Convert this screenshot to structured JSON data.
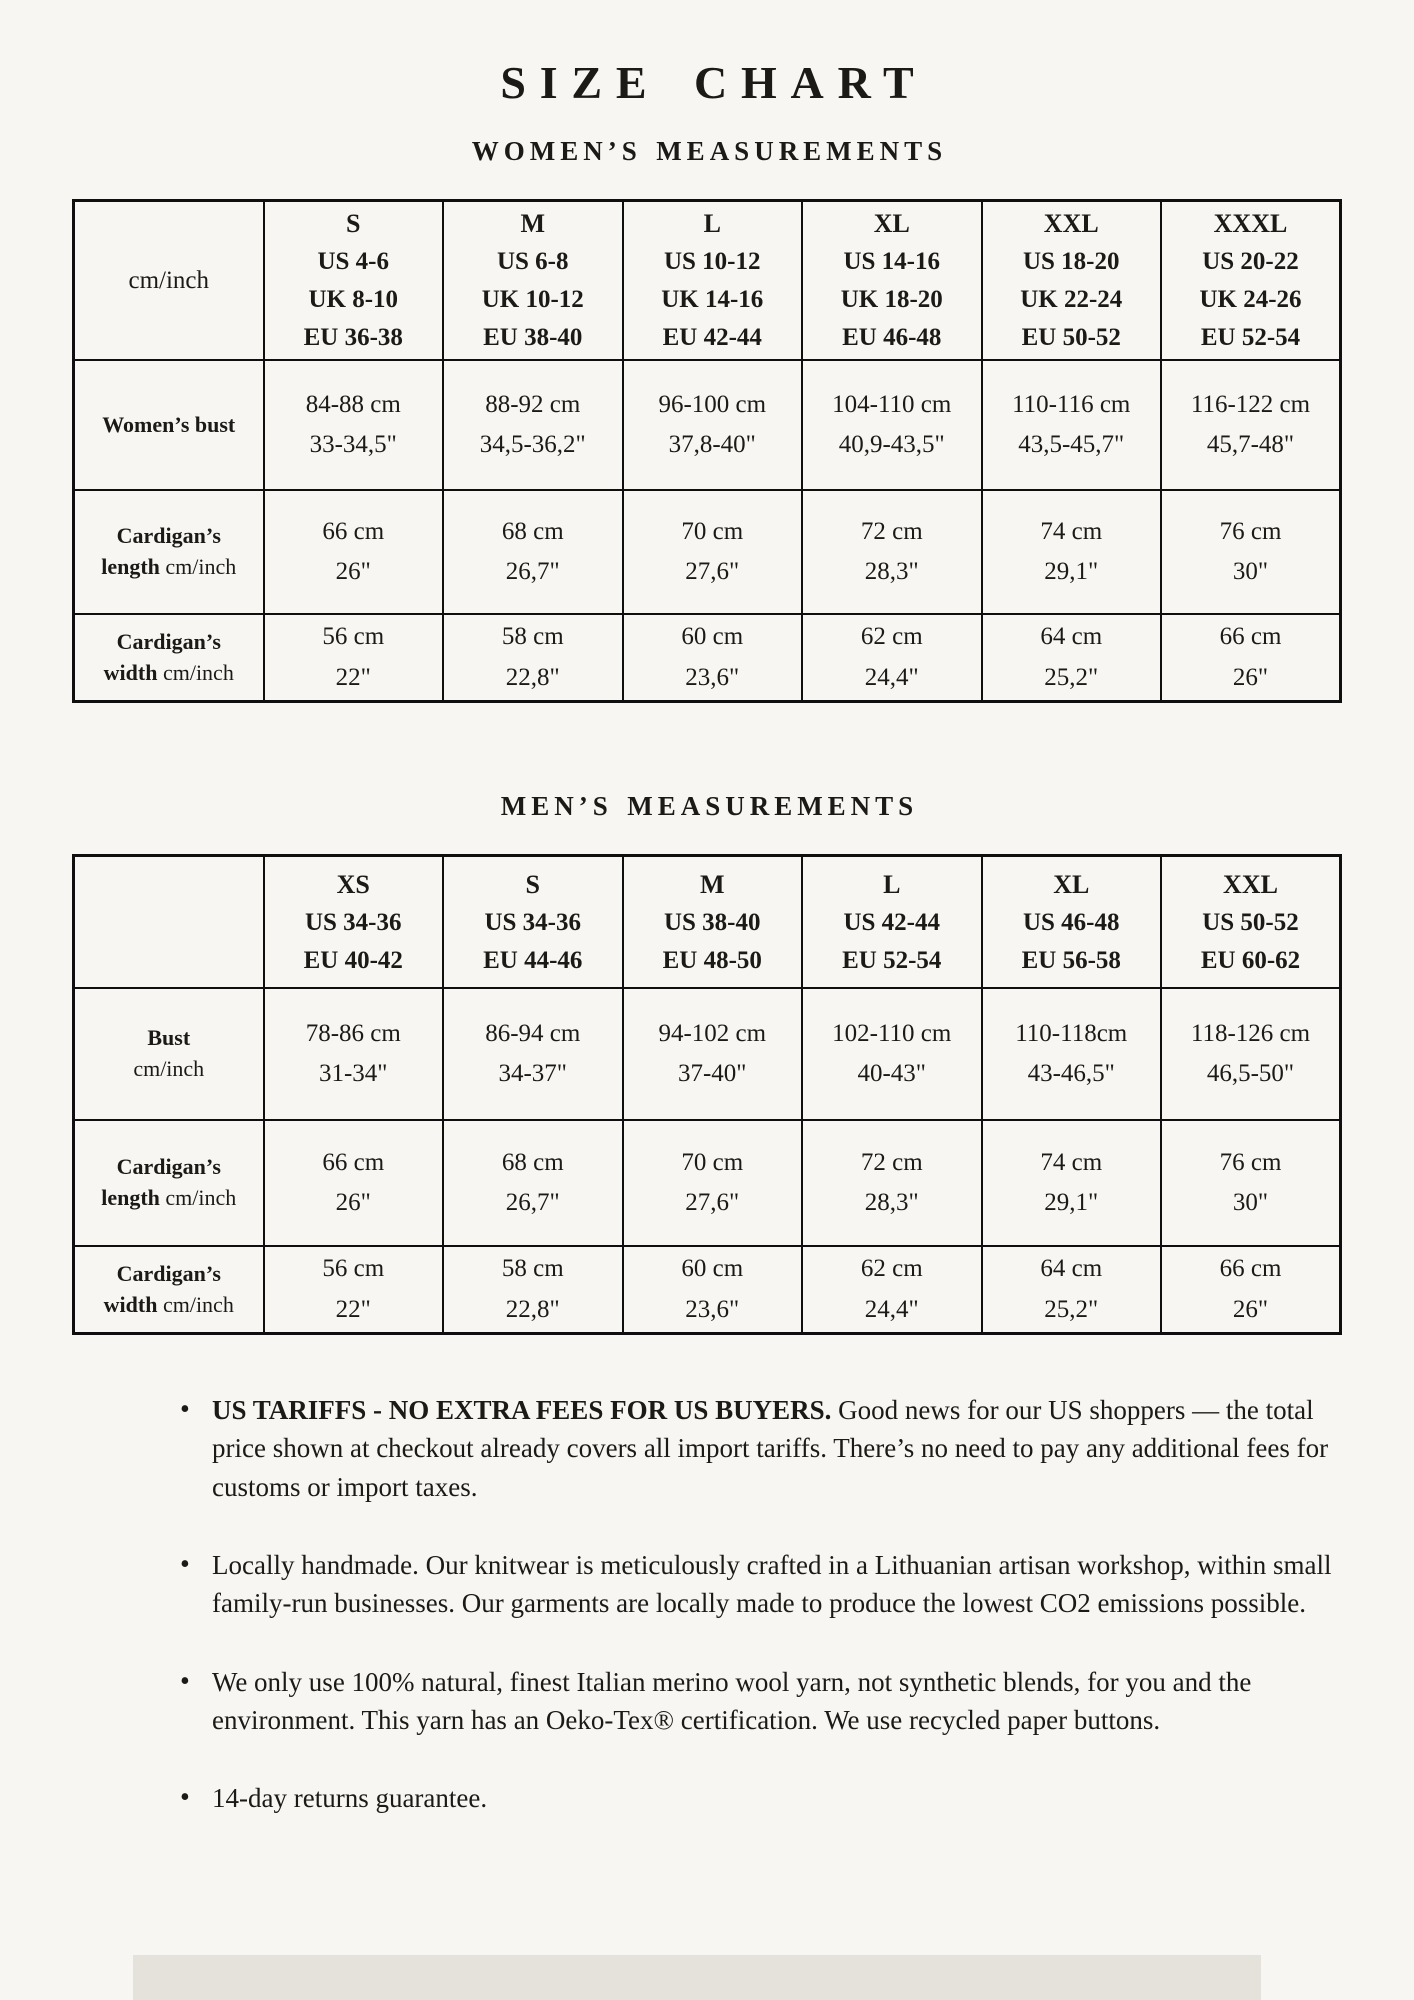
{
  "page_title": "SIZE CHART",
  "colors": {
    "background": "#f8f6f2",
    "text": "#1b1a17",
    "table_border": "#0f0f0f",
    "footer_block": "#e5e2dc"
  },
  "women": {
    "heading": "WOMEN’S MEASUREMENTS",
    "corner": "cm/inch",
    "columns": [
      {
        "size": "S",
        "subs": [
          "US 4-6",
          "UK 8-10",
          "EU 36-38"
        ]
      },
      {
        "size": "M",
        "subs": [
          "US 6-8",
          "UK 10-12",
          "EU 38-40"
        ]
      },
      {
        "size": "L",
        "subs": [
          "US 10-12",
          "UK 14-16",
          "EU 42-44"
        ]
      },
      {
        "size": "XL",
        "subs": [
          "US 14-16",
          "UK 18-20",
          "EU 46-48"
        ]
      },
      {
        "size": "XXL",
        "subs": [
          "US 18-20",
          "UK 22-24",
          "EU 50-52"
        ]
      },
      {
        "size": "XXXL",
        "subs": [
          "US 20-22",
          "UK 24-26",
          "EU 52-54"
        ]
      }
    ],
    "rows": [
      {
        "label_lines": [
          [
            {
              "bold": "Women’s bust"
            }
          ]
        ],
        "cells": [
          [
            "84-88 cm",
            "33-34,5\""
          ],
          [
            "88-92 cm",
            "34,5-36,2\""
          ],
          [
            "96-100 cm",
            "37,8-40\""
          ],
          [
            "104-110 cm",
            "40,9-43,5\""
          ],
          [
            "110-116 cm",
            "43,5-45,7\""
          ],
          [
            "116-122 cm",
            "45,7-48\""
          ]
        ]
      },
      {
        "label_lines": [
          [
            {
              "bold": "Cardigan’s"
            }
          ],
          [
            {
              "bold": "length"
            },
            {
              "reg": " cm/inch"
            }
          ]
        ],
        "cells": [
          [
            "66 cm",
            "26\""
          ],
          [
            "68 cm",
            "26,7\""
          ],
          [
            "70 cm",
            "27,6\""
          ],
          [
            "72 cm",
            "28,3\""
          ],
          [
            "74 cm",
            "29,1\""
          ],
          [
            "76 cm",
            "30\""
          ]
        ]
      },
      {
        "label_lines": [
          [
            {
              "bold": "Cardigan’s"
            }
          ],
          [
            {
              "bold": "width"
            },
            {
              "reg": " cm/inch"
            }
          ]
        ],
        "cells": [
          [
            "56 cm",
            "22\""
          ],
          [
            "58 cm",
            "22,8\""
          ],
          [
            "60 cm",
            "23,6\""
          ],
          [
            "62 cm",
            "24,4\""
          ],
          [
            "64 cm",
            "25,2\""
          ],
          [
            "66 cm",
            "26\""
          ]
        ]
      }
    ]
  },
  "men": {
    "heading": "MEN’S MEASUREMENTS",
    "corner": "",
    "columns": [
      {
        "size": "XS",
        "subs": [
          "US 34-36",
          "EU 40-42"
        ]
      },
      {
        "size": "S",
        "subs": [
          "US 34-36",
          "EU 44-46"
        ]
      },
      {
        "size": "M",
        "subs": [
          "US 38-40",
          "EU 48-50"
        ]
      },
      {
        "size": "L",
        "subs": [
          "US 42-44",
          "EU 52-54"
        ]
      },
      {
        "size": "XL",
        "subs": [
          "US 46-48",
          "EU 56-58"
        ]
      },
      {
        "size": "XXL",
        "subs": [
          "US 50-52",
          "EU 60-62"
        ]
      }
    ],
    "rows": [
      {
        "label_lines": [
          [
            {
              "bold": "Bust"
            }
          ],
          [
            {
              "reg": "cm/inch"
            }
          ]
        ],
        "cells": [
          [
            "78-86 cm",
            "31-34\""
          ],
          [
            "86-94 cm",
            "34-37\""
          ],
          [
            "94-102 cm",
            "37-40\""
          ],
          [
            "102-110 cm",
            "40-43\""
          ],
          [
            "110-118cm",
            "43-46,5\""
          ],
          [
            "118-126 cm",
            "46,5-50\""
          ]
        ]
      },
      {
        "label_lines": [
          [
            {
              "bold": "Cardigan’s"
            }
          ],
          [
            {
              "bold": "length"
            },
            {
              "reg": " cm/inch"
            }
          ]
        ],
        "cells": [
          [
            "66 cm",
            "26\""
          ],
          [
            "68 cm",
            "26,7\""
          ],
          [
            "70 cm",
            "27,6\""
          ],
          [
            "72 cm",
            "28,3\""
          ],
          [
            "74 cm",
            "29,1\""
          ],
          [
            "76 cm",
            "30\""
          ]
        ]
      },
      {
        "label_lines": [
          [
            {
              "bold": "Cardigan’s"
            }
          ],
          [
            {
              "bold": "width"
            },
            {
              "reg": " cm/inch"
            }
          ]
        ],
        "cells": [
          [
            "56 cm",
            "22\""
          ],
          [
            "58 cm",
            "22,8\""
          ],
          [
            "60 cm",
            "23,6\""
          ],
          [
            "62 cm",
            "24,4\""
          ],
          [
            "64 cm",
            "25,2\""
          ],
          [
            "66 cm",
            "26\""
          ]
        ]
      }
    ]
  },
  "bullets": [
    {
      "bold": "US TARIFFS - NO EXTRA FEES FOR US BUYERS.",
      "text": "Good news for our US shoppers — the total price shown at checkout already covers all import tariffs. There’s no need to pay any additional fees for customs or import taxes."
    },
    {
      "bold": "",
      "text": "Locally handmade. Our knitwear is meticulously crafted in a Lithuanian artisan workshop, within small family-run businesses. Our garments are locally made to produce the lowest CO2 emissions possible."
    },
    {
      "bold": "",
      "text": "We only use 100% natural, finest Italian merino wool yarn, not synthetic blends, for you and the environment. This yarn has an Oeko-Tex® certification. We use recycled paper buttons."
    },
    {
      "bold": "",
      "text": "14-day returns guarantee."
    }
  ]
}
